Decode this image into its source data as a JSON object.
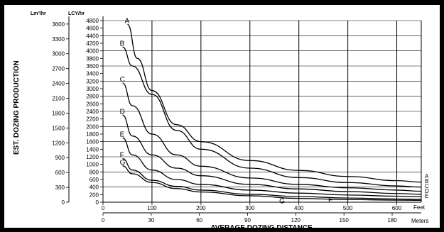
{
  "chart_data": {
    "type": "line",
    "title": "",
    "ylabel": "EST. DOZING PRODUCTION",
    "xlabel": "AVERAGE DOZING DISTANCE",
    "y_units": {
      "metric": "Lm³/hr",
      "imperial": "LCY/hr"
    },
    "x_units": {
      "imperial": "Feet",
      "metric": "Meters"
    },
    "ylim_lcy": [
      0,
      4800
    ],
    "xlim_ft": [
      0,
      650
    ],
    "grid": true,
    "y_ticks_metric": [
      "0",
      "300",
      "600",
      "900",
      "1200",
      "1500",
      "1800",
      "2100",
      "2400",
      "2700",
      "3000",
      "3300",
      "3600"
    ],
    "y_ticks_lcy": [
      "0",
      "200",
      "400",
      "600",
      "800",
      "1000",
      "1200",
      "1400",
      "1600",
      "1800",
      "2000",
      "2200",
      "2400",
      "2600",
      "2800",
      "3000",
      "3200",
      "3400",
      "3600",
      "3800",
      "4000",
      "4200",
      "4400",
      "4600",
      "4800"
    ],
    "x_ticks_feet": [
      "0",
      "100",
      "200",
      "300",
      "400",
      "500",
      "600"
    ],
    "x_ticks_meters": [
      "0",
      "30",
      "60",
      "90",
      "120",
      "150",
      "180"
    ],
    "series": [
      {
        "name": "A",
        "x": [
          50,
          70,
          100,
          150,
          200,
          300,
          400,
          500,
          600,
          650
        ],
        "y": [
          4700,
          3800,
          2950,
          2050,
          1600,
          1100,
          840,
          680,
          570,
          530
        ]
      },
      {
        "name": "B",
        "x": [
          40,
          60,
          100,
          150,
          200,
          300,
          400,
          500,
          600,
          650
        ],
        "y": [
          4100,
          3600,
          2850,
          1900,
          1400,
          900,
          650,
          520,
          430,
          400
        ]
      },
      {
        "name": "C",
        "x": [
          40,
          60,
          100,
          150,
          200,
          300,
          400,
          500,
          600,
          650
        ],
        "y": [
          3150,
          2550,
          1800,
          1250,
          950,
          640,
          470,
          380,
          320,
          290
        ]
      },
      {
        "name": "D",
        "x": [
          40,
          60,
          100,
          150,
          200,
          300,
          400,
          500,
          600,
          650
        ],
        "y": [
          2300,
          1750,
          1250,
          900,
          700,
          470,
          350,
          280,
          230,
          210
        ]
      },
      {
        "name": "E",
        "x": [
          40,
          60,
          100,
          150,
          200,
          300,
          400,
          500,
          600,
          650
        ],
        "y": [
          1700,
          1250,
          850,
          600,
          470,
          320,
          240,
          190,
          160,
          145
        ]
      },
      {
        "name": "F",
        "x": [
          40,
          60,
          100,
          150,
          200,
          300,
          400,
          500,
          600,
          650
        ],
        "y": [
          1150,
          850,
          580,
          420,
          320,
          210,
          150,
          110,
          85,
          75
        ]
      },
      {
        "name": "G",
        "x": [
          40,
          60,
          100,
          150,
          200,
          300,
          400,
          500,
          600,
          650
        ],
        "y": [
          960,
          750,
          520,
          360,
          270,
          170,
          100,
          70,
          55,
          50
        ]
      }
    ]
  }
}
